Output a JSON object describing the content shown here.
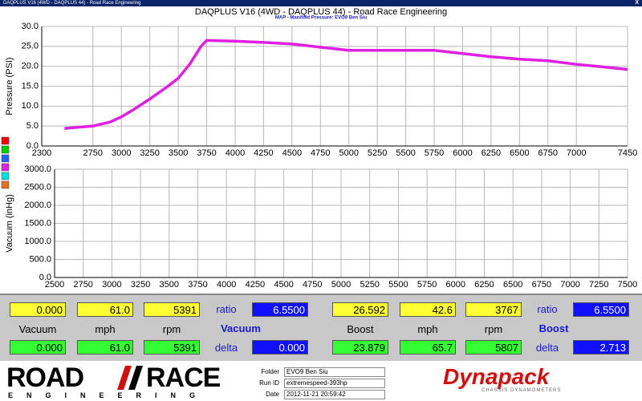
{
  "window": {
    "title": "DAQPLUS V16 (4WD - DAQPLUS 44) - Road Race Engineering",
    "close": "X"
  },
  "chart_data": [
    {
      "type": "line",
      "title": "DAQPLUS V16 (4WD - DAQPLUS 44) - Road Race Engineering",
      "subtitle": "MAP - Manifold Pressure: EVO9 Ben Siu",
      "y_label": "Pressure (PSI)",
      "xlim": [
        2300,
        7450
      ],
      "xticks": [
        2300,
        2750,
        3000,
        3250,
        3500,
        3750,
        4000,
        4250,
        4500,
        4750,
        5000,
        5250,
        5500,
        5750,
        6000,
        6250,
        6500,
        6750,
        7000,
        7450
      ],
      "ylim": [
        0,
        30
      ],
      "yticks": [
        {
          "value": 0,
          "label": "0.0"
        },
        {
          "value": 5,
          "label": "5.0"
        },
        {
          "value": 10,
          "label": "10.0"
        },
        {
          "value": 15,
          "label": "15.0"
        },
        {
          "value": 20,
          "label": "20.0"
        },
        {
          "value": 25,
          "label": "25.0"
        },
        {
          "value": 30,
          "label": "30.0"
        }
      ],
      "grid": true,
      "x": [
        2500,
        2750,
        2900,
        3000,
        3100,
        3250,
        3400,
        3500,
        3600,
        3700,
        3750,
        4000,
        4250,
        4500,
        4750,
        5000,
        5250,
        5500,
        5750,
        6000,
        6250,
        6500,
        6750,
        7000,
        7250,
        7450
      ],
      "series": [
        {
          "color": "#e020e0",
          "values": [
            4.4,
            5.0,
            6.0,
            7.3,
            9.0,
            11.8,
            14.8,
            17.0,
            20.5,
            25.0,
            26.5,
            26.3,
            26.0,
            25.6,
            24.8,
            24.0,
            24.0,
            24.0,
            24.0,
            23.2,
            22.4,
            21.8,
            21.4,
            20.5,
            19.8,
            19.2
          ]
        }
      ]
    },
    {
      "type": "line",
      "y_label": "Vacuum (inHg)",
      "xlim": [
        2500,
        7500
      ],
      "xticks": [
        2500,
        2750,
        3000,
        3250,
        3500,
        3750,
        4000,
        4250,
        4500,
        4750,
        5000,
        5250,
        5500,
        5750,
        6000,
        6250,
        6500,
        6750,
        7000,
        7250,
        7500
      ],
      "ylim": [
        0,
        3000
      ],
      "yticks": [
        {
          "value": 0,
          "label": "0.0"
        },
        {
          "value": 500,
          "label": "500.0"
        },
        {
          "value": 1000,
          "label": "1000.0"
        },
        {
          "value": 1500,
          "label": "1500.0"
        },
        {
          "value": 2000,
          "label": "2000.0"
        },
        {
          "value": 2500,
          "label": "2500.0"
        },
        {
          "value": 3000,
          "label": "3000.0"
        }
      ],
      "grid": true
    }
  ],
  "panel": {
    "left": {
      "top": [
        "0.000",
        "61.0",
        "5391"
      ],
      "ratio_label": "ratio",
      "ratio": "6.5500",
      "headers": [
        "Vacuum",
        "mph",
        "rpm"
      ],
      "title": "Vacuum",
      "bottom": [
        "0.000",
        "61.0",
        "5391"
      ],
      "delta_label": "delta",
      "delta": "0.000"
    },
    "right": {
      "top": [
        "26.592",
        "42.6",
        "3767"
      ],
      "ratio_label": "ratio",
      "ratio": "6.5500",
      "headers": [
        "Boost",
        "mph",
        "rpm"
      ],
      "title": "Boost",
      "bottom": [
        "23.879",
        "65.7",
        "5807"
      ],
      "delta_label": "delta",
      "delta": "2.713"
    }
  },
  "footer": {
    "logo_left": "ROAD",
    "logo_right": "RACE",
    "logo_sub": "ENGINEERING",
    "fields": [
      {
        "label": "Folder",
        "value": "EVO9 Ben Siu"
      },
      {
        "label": "Run ID",
        "value": "extremespeed-393hp"
      },
      {
        "label": "Date",
        "value": "2012-11-21 20:59:42"
      }
    ],
    "brand": "Dynapack",
    "brand_sub": "CHASSIS DYNAMOMETERS"
  }
}
